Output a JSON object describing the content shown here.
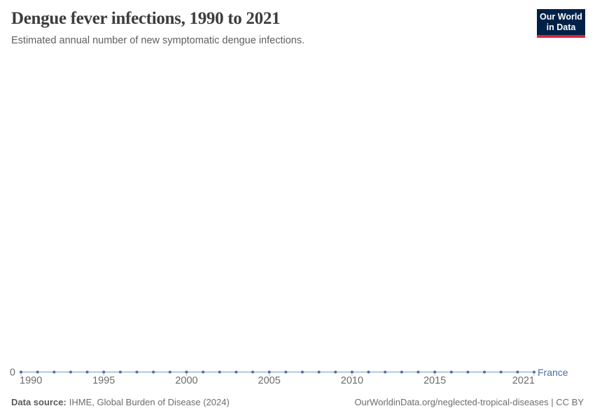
{
  "header": {
    "title": "Dengue fever infections, 1990 to 2021",
    "subtitle": "Estimated annual number of new symptomatic dengue infections."
  },
  "logo": {
    "line1": "Our World",
    "line2": "in Data",
    "bg_color": "#002147",
    "accent_color": "#d7263b"
  },
  "chart_data": {
    "type": "line",
    "title": "Dengue fever infections, 1990 to 2021",
    "xlabel": "",
    "ylabel": "",
    "x": [
      1990,
      1991,
      1992,
      1993,
      1994,
      1995,
      1996,
      1997,
      1998,
      1999,
      2000,
      2001,
      2002,
      2003,
      2004,
      2005,
      2006,
      2007,
      2008,
      2009,
      2010,
      2011,
      2012,
      2013,
      2014,
      2015,
      2016,
      2017,
      2018,
      2019,
      2020,
      2021
    ],
    "series": [
      {
        "name": "France",
        "color": "#4d6fa9",
        "line_color": "#9db5d8",
        "values": [
          0,
          0,
          0,
          0,
          0,
          0,
          0,
          0,
          0,
          0,
          0,
          0,
          0,
          0,
          0,
          0,
          0,
          0,
          0,
          0,
          0,
          0,
          0,
          0,
          0,
          0,
          0,
          0,
          0,
          0,
          0,
          0
        ]
      }
    ],
    "x_ticks": [
      1990,
      1995,
      2000,
      2005,
      2010,
      2015,
      2021
    ],
    "y_ticks": [
      0
    ],
    "ylim": [
      0,
      1
    ],
    "grid": false,
    "legend_position": "right-of-line",
    "axis_text_color": "#6c6c6c",
    "gridline_color": "#dadada",
    "tick_color": "#c6c6c6"
  },
  "footer": {
    "source_label": "Data source:",
    "source_value": "IHME, Global Burden of Disease (2024)",
    "credit": "OurWorldinData.org/neglected-tropical-diseases | CC BY"
  }
}
